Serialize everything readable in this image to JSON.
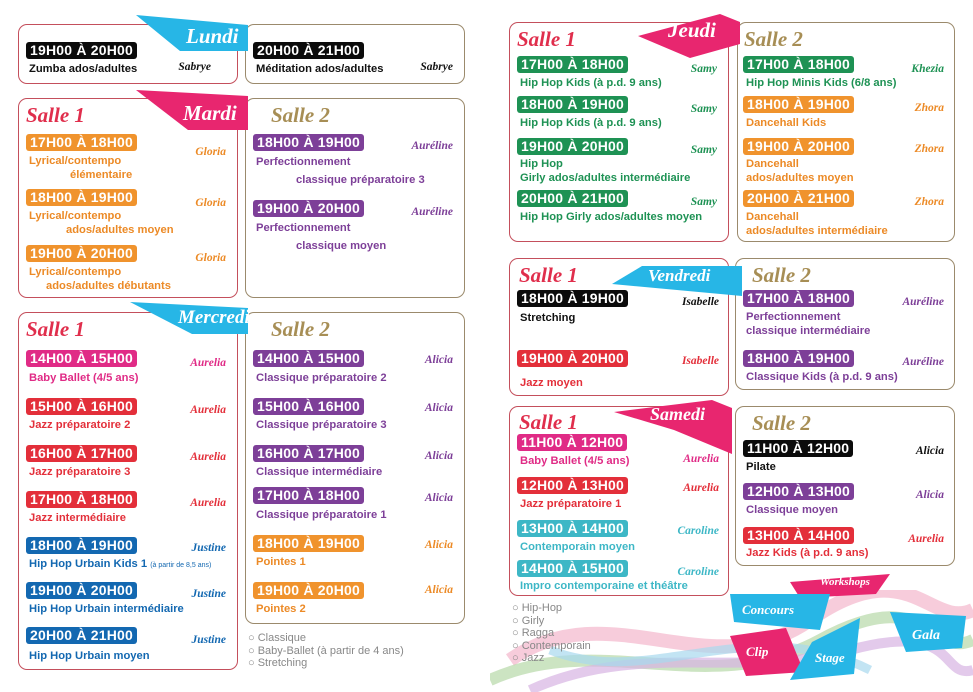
{
  "days": {
    "lundi": "Lundi",
    "mardi": "Mardi",
    "mercredi": "Mercredi",
    "jeudi": "Jeudi",
    "vendredi": "Vendredi",
    "samedi": "Samedi"
  },
  "rooms": {
    "salle1": "Salle 1",
    "salle2": "Salle 2"
  },
  "lundi": {
    "a": {
      "time": "19H00 À 20H00",
      "course": "Zumba ados/adultes",
      "teacher": "Sabrye"
    },
    "b": {
      "time": "20H00 À 21H00",
      "course": "Méditation ados/adultes",
      "teacher": "Sabrye"
    }
  },
  "mardi": {
    "s1": [
      {
        "time": "17H00 À 18H00",
        "line1": "Lyrical/contempo",
        "line2": "élémentaire",
        "teacher": "Gloria"
      },
      {
        "time": "18H00 À 19H00",
        "line1": "Lyrical/contempo",
        "line2": "ados/adultes moyen",
        "teacher": "Gloria"
      },
      {
        "time": "19H00 À 20H00",
        "line1": "Lyrical/contempo",
        "line2": "ados/adultes débutants",
        "teacher": "Gloria"
      }
    ],
    "s2": [
      {
        "time": "18H00 À 19H00",
        "line1": "Perfectionnement",
        "line2": "classique préparatoire 3",
        "teacher": "Auréline"
      },
      {
        "time": "19H00 À 20H00",
        "line1": "Perfectionnement",
        "line2": "classique moyen",
        "teacher": "Auréline"
      }
    ]
  },
  "mercredi": {
    "s1": [
      {
        "time": "14H00 À 15H00",
        "course": "Baby Ballet (4/5 ans)",
        "teacher": "Aurelia"
      },
      {
        "time": "15H00 À 16H00",
        "course": "Jazz préparatoire 2",
        "teacher": "Aurelia"
      },
      {
        "time": "16H00 À 17H00",
        "course": "Jazz préparatoire 3",
        "teacher": "Aurelia"
      },
      {
        "time": "17H00 À 18H00",
        "course": "Jazz intermédiaire",
        "teacher": "Aurelia"
      },
      {
        "time": "18H00 À 19H00",
        "course": "Hip Hop Urbain Kids 1",
        "note": "(à partir de 8,5 ans)",
        "teacher": "Justine"
      },
      {
        "time": "19H00 À 20H00",
        "course": "Hip Hop Urbain intermédiaire",
        "teacher": "Justine"
      },
      {
        "time": "20H00 À 21H00",
        "course": "Hip Hop Urbain moyen",
        "teacher": "Justine"
      }
    ],
    "s2": [
      {
        "time": "14H00 À 15H00",
        "course": "Classique préparatoire 2",
        "teacher": "Alicia"
      },
      {
        "time": "15H00 À 16H00",
        "course": "Classique préparatoire 3",
        "teacher": "Alicia"
      },
      {
        "time": "16H00 À 17H00",
        "course": "Classique intermédiaire",
        "teacher": "Alicia"
      },
      {
        "time": "17H00 À 18H00",
        "course": "Classique préparatoire 1",
        "teacher": "Alicia"
      },
      {
        "time": "18H00 À 19H00",
        "course": "Pointes 1",
        "teacher": "Alicia"
      },
      {
        "time": "19H00 À 20H00",
        "course": "Pointes 2",
        "teacher": "Alicia"
      }
    ]
  },
  "jeudi": {
    "s1": [
      {
        "time": "17H00 À 18H00",
        "line1": "Hip Hop Kids (à p.d. 9 ans)",
        "teacher": "Samy"
      },
      {
        "time": "18H00 À 19H00",
        "line1": "Hip Hop Kids (à p.d. 9 ans)",
        "teacher": "Samy"
      },
      {
        "time": "19H00 À 20H00",
        "line1": "Hip Hop",
        "line2": "Girly ados/adultes intermédiaire",
        "teacher": "Samy"
      },
      {
        "time": "20H00 À 21H00",
        "line1": "Hip Hop Girly ados/adultes moyen",
        "teacher": "Samy"
      }
    ],
    "s2": [
      {
        "time": "17H00 À 18H00",
        "line1": "Hip Hop Minis Kids (6/8 ans)",
        "teacher": "Khezia"
      },
      {
        "time": "18H00 À 19H00",
        "line1": "Dancehall Kids",
        "teacher": "Zhora"
      },
      {
        "time": "19H00 À 20H00",
        "line1": "Dancehall",
        "line2": "ados/adultes moyen",
        "teacher": "Zhora"
      },
      {
        "time": "20H00 À 21H00",
        "line1": "Dancehall",
        "line2": "ados/adultes intermédiaire",
        "teacher": "Zhora"
      }
    ]
  },
  "vendredi": {
    "s1": [
      {
        "time": "18H00 À 19H00",
        "course": "Stretching",
        "teacher": "Isabelle"
      },
      {
        "time": "19H00 À 20H00",
        "course": "Jazz moyen",
        "teacher": "Isabelle"
      }
    ],
    "s2": [
      {
        "time": "17H00 À 18H00",
        "line1": "Perfectionnement",
        "line2": "classique intermédiaire",
        "teacher": "Auréline"
      },
      {
        "time": "18H00 À 19H00",
        "line1": "Classique Kids (à p.d. 9 ans)",
        "teacher": "Auréline"
      }
    ]
  },
  "samedi": {
    "s1": [
      {
        "time": "11H00 À 12H00",
        "course": "Baby Ballet (4/5 ans)",
        "teacher": "Aurelia"
      },
      {
        "time": "12H00 À 13H00",
        "course": "Jazz préparatoire 1",
        "teacher": "Aurelia"
      },
      {
        "time": "13H00 À 14H00",
        "course": "Contemporain moyen",
        "teacher": "Caroline"
      },
      {
        "time": "14H00 À 15H00",
        "course": "Impro contemporaine et théâtre",
        "teacher": "Caroline"
      }
    ],
    "s2": [
      {
        "time": "11H00 À 12H00",
        "course": "Pilate",
        "teacher": "Alicia"
      },
      {
        "time": "12H00 À 13H00",
        "course": "Classique moyen",
        "teacher": "Alicia"
      },
      {
        "time": "13H00 À 14H00",
        "course": "Jazz Kids (à p.d. 9 ans)",
        "teacher": "Aurelia"
      }
    ]
  },
  "legend_left": [
    "Classique",
    "Baby-Ballet (à partir de 4 ans)",
    "Stretching"
  ],
  "legend_right": [
    "Hip-Hop",
    "Girly",
    "Ragga",
    "Contemporain",
    "Jazz"
  ],
  "events": {
    "workshops": "Workshops",
    "concours": "Concours",
    "gala": "Gala",
    "clip": "Clip",
    "stage": "Stage"
  },
  "colors": {
    "black": "#0b0b0b",
    "orange": "#f0932d",
    "purple": "#7d3f98",
    "red": "#e32f3a",
    "pink": "#e02b86",
    "blue": "#1368b1",
    "green": "#1e9254",
    "teal": "#3db7c6",
    "day_flag_pink": "#e8266f",
    "day_flag_cyan": "#27b6e6"
  }
}
